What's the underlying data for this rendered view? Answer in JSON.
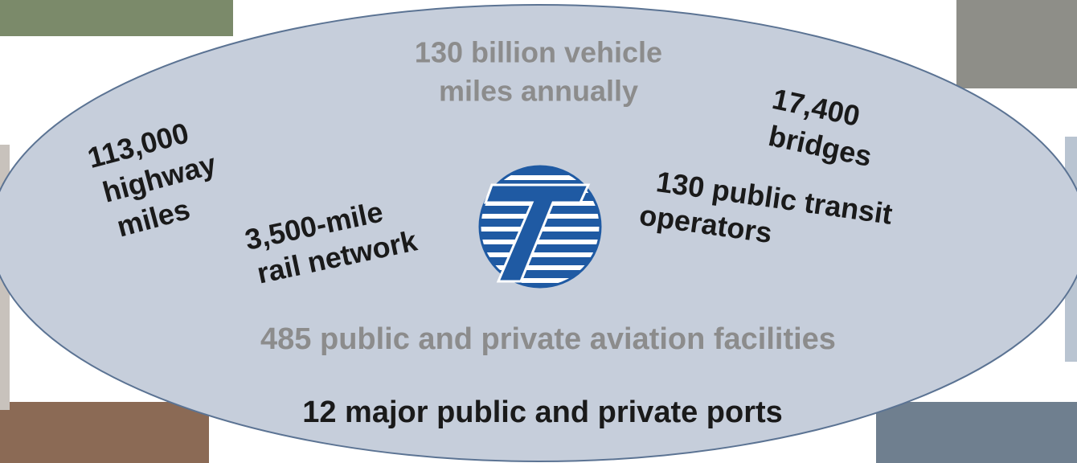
{
  "title": {
    "lines": [
      "130 billion vehicle",
      "miles annually"
    ]
  },
  "facts": [
    {
      "lines": [
        "113,000",
        "highway",
        "miles"
      ]
    },
    {
      "lines": [
        "3,500-mile",
        "rail network"
      ]
    },
    {
      "lines": [
        "17,400",
        "bridges"
      ]
    },
    {
      "lines": [
        "130 public transit",
        "operators"
      ]
    }
  ],
  "footer": {
    "aviation": "485 public and private aviation facilities",
    "ports": "12 major public and private ports"
  }
}
